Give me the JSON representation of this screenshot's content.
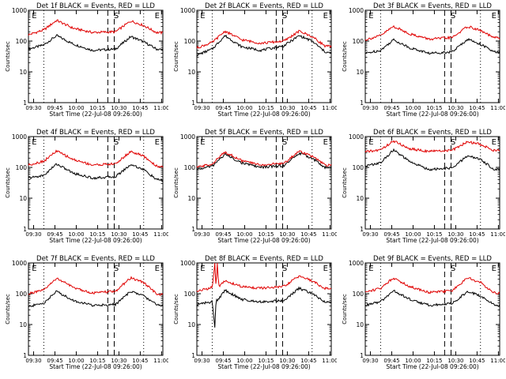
{
  "chart_data": [
    {
      "type": "line",
      "title": "Det 1f BLACK = Events, RED = LLD",
      "xlabel": "Start Time (22-Jul-08 09:26:00)",
      "ylabel": "Counts/sec",
      "x_ticks": [
        "09:30",
        "09:45",
        "10:00",
        "10:15",
        "10:30",
        "10:45",
        "11:00"
      ],
      "xlim": [
        0,
        105
      ],
      "y_scale": "log",
      "ylim": [
        1,
        1000
      ],
      "y_ticks": [
        "1",
        "10",
        "100",
        "1000"
      ],
      "markers": [
        "E",
        "S",
        "E"
      ],
      "series": [
        {
          "name": "Events",
          "color": "#000000",
          "x": [
            0,
            12,
            22,
            35,
            50,
            68,
            80,
            90,
            100,
            105
          ],
          "y": [
            55,
            75,
            150,
            80,
            50,
            55,
            140,
            95,
            55,
            52
          ]
        },
        {
          "name": "LLD",
          "color": "#e00000",
          "x": [
            0,
            12,
            22,
            35,
            50,
            68,
            80,
            90,
            100,
            105
          ],
          "y": [
            160,
            230,
            470,
            260,
            190,
            200,
            450,
            320,
            190,
            185
          ]
        }
      ]
    },
    {
      "type": "line",
      "title": "Det 2f BLACK = Events, RED = LLD",
      "xlabel": "Start Time (22-Jul-08 09:26:00)",
      "ylabel": "Counts/sec",
      "x_ticks": [
        "09:30",
        "09:45",
        "10:00",
        "10:15",
        "10:30",
        "10:45",
        "11:00"
      ],
      "xlim": [
        0,
        105
      ],
      "y_scale": "log",
      "ylim": [
        1,
        1000
      ],
      "y_ticks": [
        "1",
        "10",
        "100",
        "1000"
      ],
      "markers": [
        "E",
        "S",
        "E"
      ],
      "series": [
        {
          "name": "Events",
          "color": "#000000",
          "x": [
            0,
            12,
            22,
            35,
            50,
            68,
            80,
            90,
            100,
            105
          ],
          "y": [
            35,
            55,
            150,
            65,
            50,
            70,
            150,
            100,
            45,
            40
          ]
        },
        {
          "name": "LLD",
          "color": "#e00000",
          "x": [
            0,
            12,
            22,
            35,
            50,
            68,
            80,
            90,
            100,
            105
          ],
          "y": [
            60,
            90,
            210,
            110,
            85,
            100,
            210,
            140,
            70,
            65
          ]
        }
      ]
    },
    {
      "type": "line",
      "title": "Det 3f BLACK = Events, RED = LLD",
      "xlabel": "Start Time (22-Jul-08 09:26:00)",
      "ylabel": "Counts/sec",
      "x_ticks": [
        "09:30",
        "09:45",
        "10:00",
        "10:15",
        "10:30",
        "10:45",
        "11:00"
      ],
      "xlim": [
        0,
        105
      ],
      "y_scale": "log",
      "ylim": [
        1,
        1000
      ],
      "y_ticks": [
        "1",
        "10",
        "100",
        "1000"
      ],
      "markers": [
        "E",
        "S",
        "E"
      ],
      "series": [
        {
          "name": "Events",
          "color": "#000000",
          "x": [
            0,
            12,
            22,
            35,
            50,
            68,
            80,
            90,
            100,
            105
          ],
          "y": [
            40,
            50,
            110,
            60,
            40,
            45,
            115,
            80,
            45,
            42
          ]
        },
        {
          "name": "LLD",
          "color": "#e00000",
          "x": [
            0,
            12,
            22,
            35,
            50,
            68,
            80,
            90,
            100,
            105
          ],
          "y": [
            110,
            150,
            300,
            170,
            115,
            130,
            300,
            220,
            130,
            125
          ]
        }
      ]
    },
    {
      "type": "line",
      "title": "Det 4f BLACK = Events, RED = LLD",
      "xlabel": "Start Time (22-Jul-08 09:26:00)",
      "ylabel": "Counts/sec",
      "x_ticks": [
        "09:30",
        "09:45",
        "10:00",
        "10:15",
        "10:30",
        "10:45",
        "11:00"
      ],
      "xlim": [
        0,
        105
      ],
      "y_scale": "log",
      "ylim": [
        1,
        1000
      ],
      "y_ticks": [
        "1",
        "10",
        "100",
        "1000"
      ],
      "markers": [
        "E",
        "S",
        "E"
      ],
      "series": [
        {
          "name": "Events",
          "color": "#000000",
          "x": [
            0,
            12,
            22,
            35,
            50,
            68,
            80,
            90,
            100,
            105
          ],
          "y": [
            45,
            55,
            130,
            65,
            45,
            50,
            125,
            85,
            40,
            38
          ]
        },
        {
          "name": "LLD",
          "color": "#e00000",
          "x": [
            0,
            12,
            22,
            35,
            50,
            68,
            80,
            90,
            100,
            105
          ],
          "y": [
            120,
            160,
            340,
            180,
            120,
            130,
            330,
            230,
            110,
            105
          ]
        }
      ]
    },
    {
      "type": "line",
      "title": "Det 5f BLACK = Events, RED = LLD",
      "xlabel": "Start Time (22-Jul-08 09:26:00)",
      "ylabel": "Counts/sec",
      "x_ticks": [
        "09:30",
        "09:45",
        "10:00",
        "10:15",
        "10:30",
        "10:45",
        "11:00"
      ],
      "xlim": [
        0,
        105
      ],
      "y_scale": "log",
      "ylim": [
        1,
        1000
      ],
      "y_ticks": [
        "1",
        "10",
        "100",
        "1000"
      ],
      "markers": [
        "E",
        "S",
        "E"
      ],
      "series": [
        {
          "name": "Events",
          "color": "#000000",
          "x": [
            0,
            12,
            22,
            35,
            50,
            68,
            80,
            90,
            100,
            105
          ],
          "y": [
            85,
            110,
            270,
            140,
            100,
            115,
            290,
            200,
            100,
            95
          ]
        },
        {
          "name": "LLD",
          "color": "#e00000",
          "x": [
            0,
            12,
            22,
            35,
            50,
            68,
            80,
            90,
            100,
            105
          ],
          "y": [
            100,
            130,
            320,
            165,
            120,
            135,
            340,
            230,
            120,
            115
          ]
        }
      ]
    },
    {
      "type": "line",
      "title": "Det 6f BLACK = Events, RED = LLD",
      "xlabel": "Start Time (22-Jul-08 09:26:00)",
      "ylabel": "Counts/sec",
      "x_ticks": [
        "09:30",
        "09:45",
        "10:00",
        "10:15",
        "10:30",
        "10:45",
        "11:00"
      ],
      "xlim": [
        0,
        105
      ],
      "y_scale": "log",
      "ylim": [
        1,
        1000
      ],
      "y_ticks": [
        "1",
        "10",
        "100",
        "1000"
      ],
      "markers": [
        "E",
        "S",
        "E"
      ],
      "series": [
        {
          "name": "Events",
          "color": "#000000",
          "x": [
            0,
            12,
            22,
            35,
            50,
            68,
            80,
            90,
            100,
            105
          ],
          "y": [
            110,
            140,
            370,
            150,
            85,
            95,
            240,
            180,
            90,
            85
          ]
        },
        {
          "name": "LLD",
          "color": "#e00000",
          "x": [
            0,
            12,
            22,
            35,
            50,
            68,
            80,
            90,
            100,
            105
          ],
          "y": [
            320,
            370,
            720,
            400,
            330,
            360,
            680,
            560,
            360,
            350
          ]
        }
      ]
    },
    {
      "type": "line",
      "title": "Det 7f BLACK = Events, RED = LLD",
      "xlabel": "Start Time (22-Jul-08 09:26:00)",
      "ylabel": "Counts/sec",
      "x_ticks": [
        "09:30",
        "09:45",
        "10:00",
        "10:15",
        "10:30",
        "10:45",
        "11:00"
      ],
      "xlim": [
        0,
        105
      ],
      "y_scale": "log",
      "ylim": [
        1,
        1000
      ],
      "y_ticks": [
        "1",
        "10",
        "100",
        "1000"
      ],
      "markers": [
        "E",
        "S",
        "E"
      ],
      "series": [
        {
          "name": "Events",
          "color": "#000000",
          "x": [
            0,
            12,
            22,
            35,
            50,
            68,
            80,
            90,
            100,
            105
          ],
          "y": [
            38,
            50,
            120,
            60,
            42,
            45,
            120,
            85,
            45,
            42
          ]
        },
        {
          "name": "LLD",
          "color": "#e00000",
          "x": [
            0,
            12,
            22,
            35,
            50,
            68,
            80,
            90,
            100,
            105
          ],
          "y": [
            100,
            130,
            320,
            160,
            105,
            120,
            330,
            230,
            100,
            95
          ]
        }
      ]
    },
    {
      "type": "line",
      "title": "Det 8f BLACK = Events, RED = LLD",
      "xlabel": "Start Time (22-Jul-08 09:26:00)",
      "ylabel": "Counts/sec",
      "x_ticks": [
        "09:30",
        "09:45",
        "10:00",
        "10:15",
        "10:30",
        "10:45",
        "11:00"
      ],
      "xlim": [
        0,
        105
      ],
      "y_scale": "log",
      "ylim": [
        1,
        1000
      ],
      "y_ticks": [
        "1",
        "10",
        "100",
        "1000"
      ],
      "markers": [
        "E",
        "S",
        "E"
      ],
      "series": [
        {
          "name": "Events",
          "color": "#000000",
          "x": [
            0,
            12,
            14,
            15,
            16,
            22,
            35,
            50,
            68,
            80,
            90,
            100,
            105
          ],
          "y": [
            45,
            55,
            8,
            60,
            60,
            130,
            65,
            55,
            60,
            150,
            100,
            55,
            50
          ]
        },
        {
          "name": "LLD",
          "color": "#e00000",
          "x": [
            0,
            12,
            14,
            15,
            16,
            17,
            22,
            35,
            50,
            68,
            80,
            90,
            100,
            105
          ],
          "y": [
            120,
            160,
            1000,
            160,
            1000,
            170,
            260,
            170,
            150,
            170,
            380,
            260,
            150,
            140
          ]
        }
      ]
    },
    {
      "type": "line",
      "title": "Det 9f BLACK = Events, RED = LLD",
      "xlabel": "Start Time (22-Jul-08 09:26:00)",
      "ylabel": "Counts/sec",
      "x_ticks": [
        "09:30",
        "09:45",
        "10:00",
        "10:15",
        "10:30",
        "10:45",
        "11:00"
      ],
      "xlim": [
        0,
        105
      ],
      "y_scale": "log",
      "ylim": [
        1,
        1000
      ],
      "y_ticks": [
        "1",
        "10",
        "100",
        "1000"
      ],
      "markers": [
        "E",
        "S",
        "E"
      ],
      "series": [
        {
          "name": "Events",
          "color": "#000000",
          "x": [
            0,
            12,
            22,
            35,
            50,
            68,
            80,
            90,
            100,
            105
          ],
          "y": [
            42,
            55,
            125,
            65,
            42,
            48,
            120,
            85,
            45,
            42
          ]
        },
        {
          "name": "LLD",
          "color": "#e00000",
          "x": [
            0,
            12,
            22,
            35,
            50,
            68,
            80,
            90,
            100,
            105
          ],
          "y": [
            115,
            150,
            330,
            170,
            110,
            125,
            330,
            230,
            110,
            105
          ]
        }
      ]
    }
  ]
}
